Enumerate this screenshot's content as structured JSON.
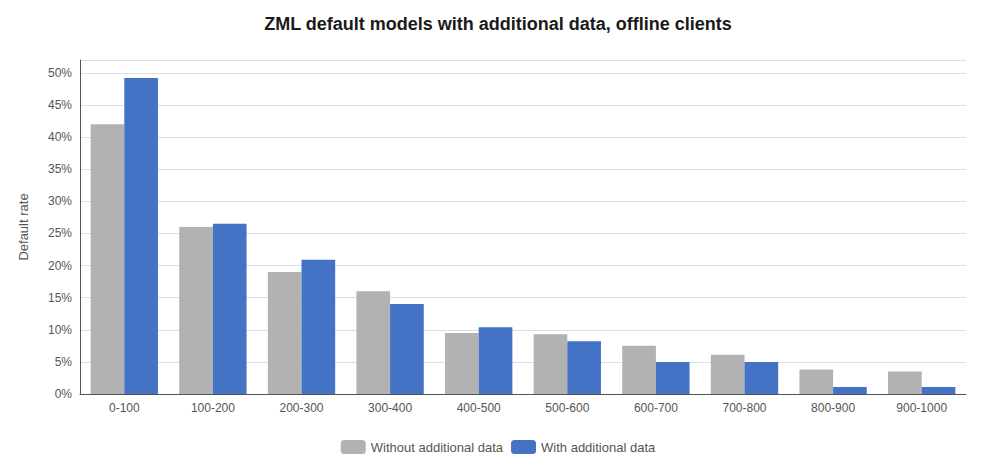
{
  "chart_data": {
    "type": "bar",
    "title": "ZML default models with additional data, offline clients",
    "categories": [
      "0-100",
      "100-200",
      "200-300",
      "300-400",
      "400-500",
      "500-600",
      "600-700",
      "700-800",
      "800-900",
      "900-1000"
    ],
    "series": [
      {
        "name": "Without additional data",
        "color": "#b2b2b2",
        "values": [
          0.42,
          0.26,
          0.19,
          0.16,
          0.095,
          0.093,
          0.075,
          0.061,
          0.038,
          0.035
        ]
      },
      {
        "name": "With additional data",
        "color": "#4472c4",
        "values": [
          0.492,
          0.265,
          0.209,
          0.14,
          0.104,
          0.082,
          0.05,
          0.05,
          0.011,
          0.011
        ]
      }
    ],
    "ylabel": "Default rate",
    "ylim": [
      0,
      0.52
    ],
    "yticks": [
      {
        "value": 0.0,
        "label": "0%"
      },
      {
        "value": 0.05,
        "label": "5%"
      },
      {
        "value": 0.1,
        "label": "10%"
      },
      {
        "value": 0.15,
        "label": "15%"
      },
      {
        "value": 0.2,
        "label": "20%"
      },
      {
        "value": 0.25,
        "label": "25%"
      },
      {
        "value": 0.3,
        "label": "30%"
      },
      {
        "value": 0.35,
        "label": "35%"
      },
      {
        "value": 0.4,
        "label": "40%"
      },
      {
        "value": 0.45,
        "label": "45%"
      },
      {
        "value": 0.5,
        "label": "50%"
      }
    ],
    "grid": true,
    "legend": "bottom"
  }
}
